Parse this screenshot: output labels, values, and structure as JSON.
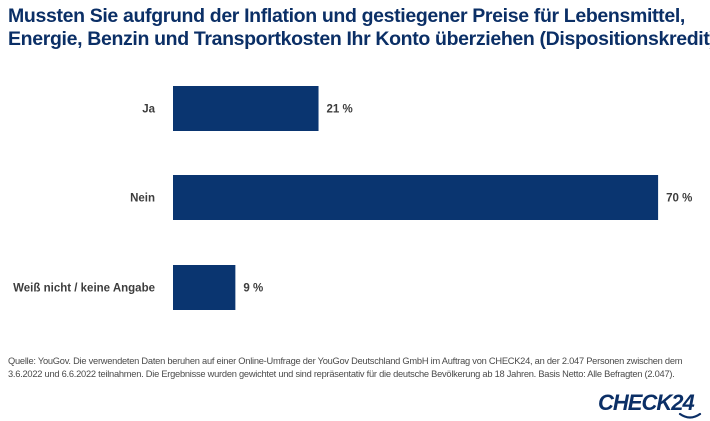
{
  "title": {
    "line1": "Mussten Sie aufgrund der Inflation und gestiegener Preise für Lebensmittel,",
    "line2": "Energie, Benzin und Transportkosten Ihr Konto überziehen (Dispositionskredit)?"
  },
  "chart_data": {
    "type": "bar",
    "orientation": "horizontal",
    "title": "Mussten Sie aufgrund der Inflation und gestiegener Preise für Lebensmittel, Energie, Benzin und Transportkosten Ihr Konto überziehen (Dispositionskredit)?",
    "categories": [
      "Ja",
      "Nein",
      "Weiß nicht / keine Angabe"
    ],
    "values": [
      21,
      70,
      9
    ],
    "value_labels": [
      "21 %",
      "70 %",
      "9 %"
    ],
    "unit": "%",
    "xlabel": "",
    "ylabel": "",
    "xlim": [
      0,
      70
    ],
    "grid": false,
    "legend": "none",
    "bar_color": "#0a3570"
  },
  "source": {
    "line1": "Quelle: YouGov. Die verwendeten Daten beruhen auf einer Online-Umfrage der YouGov Deutschland GmbH im Auftrag von CHECK24, an der 2.047 Personen zwischen dem",
    "line2": "3.6.2022 und 6.6.2022 teilnahmen. Die Ergebnisse wurden gewichtet und sind repräsentativ für die deutsche Bevölkerung ab 18 Jahren. Basis Netto: Alle Befragten (2.047)."
  },
  "logo": {
    "text": "CHECK24",
    "color": "#0b2f66"
  }
}
